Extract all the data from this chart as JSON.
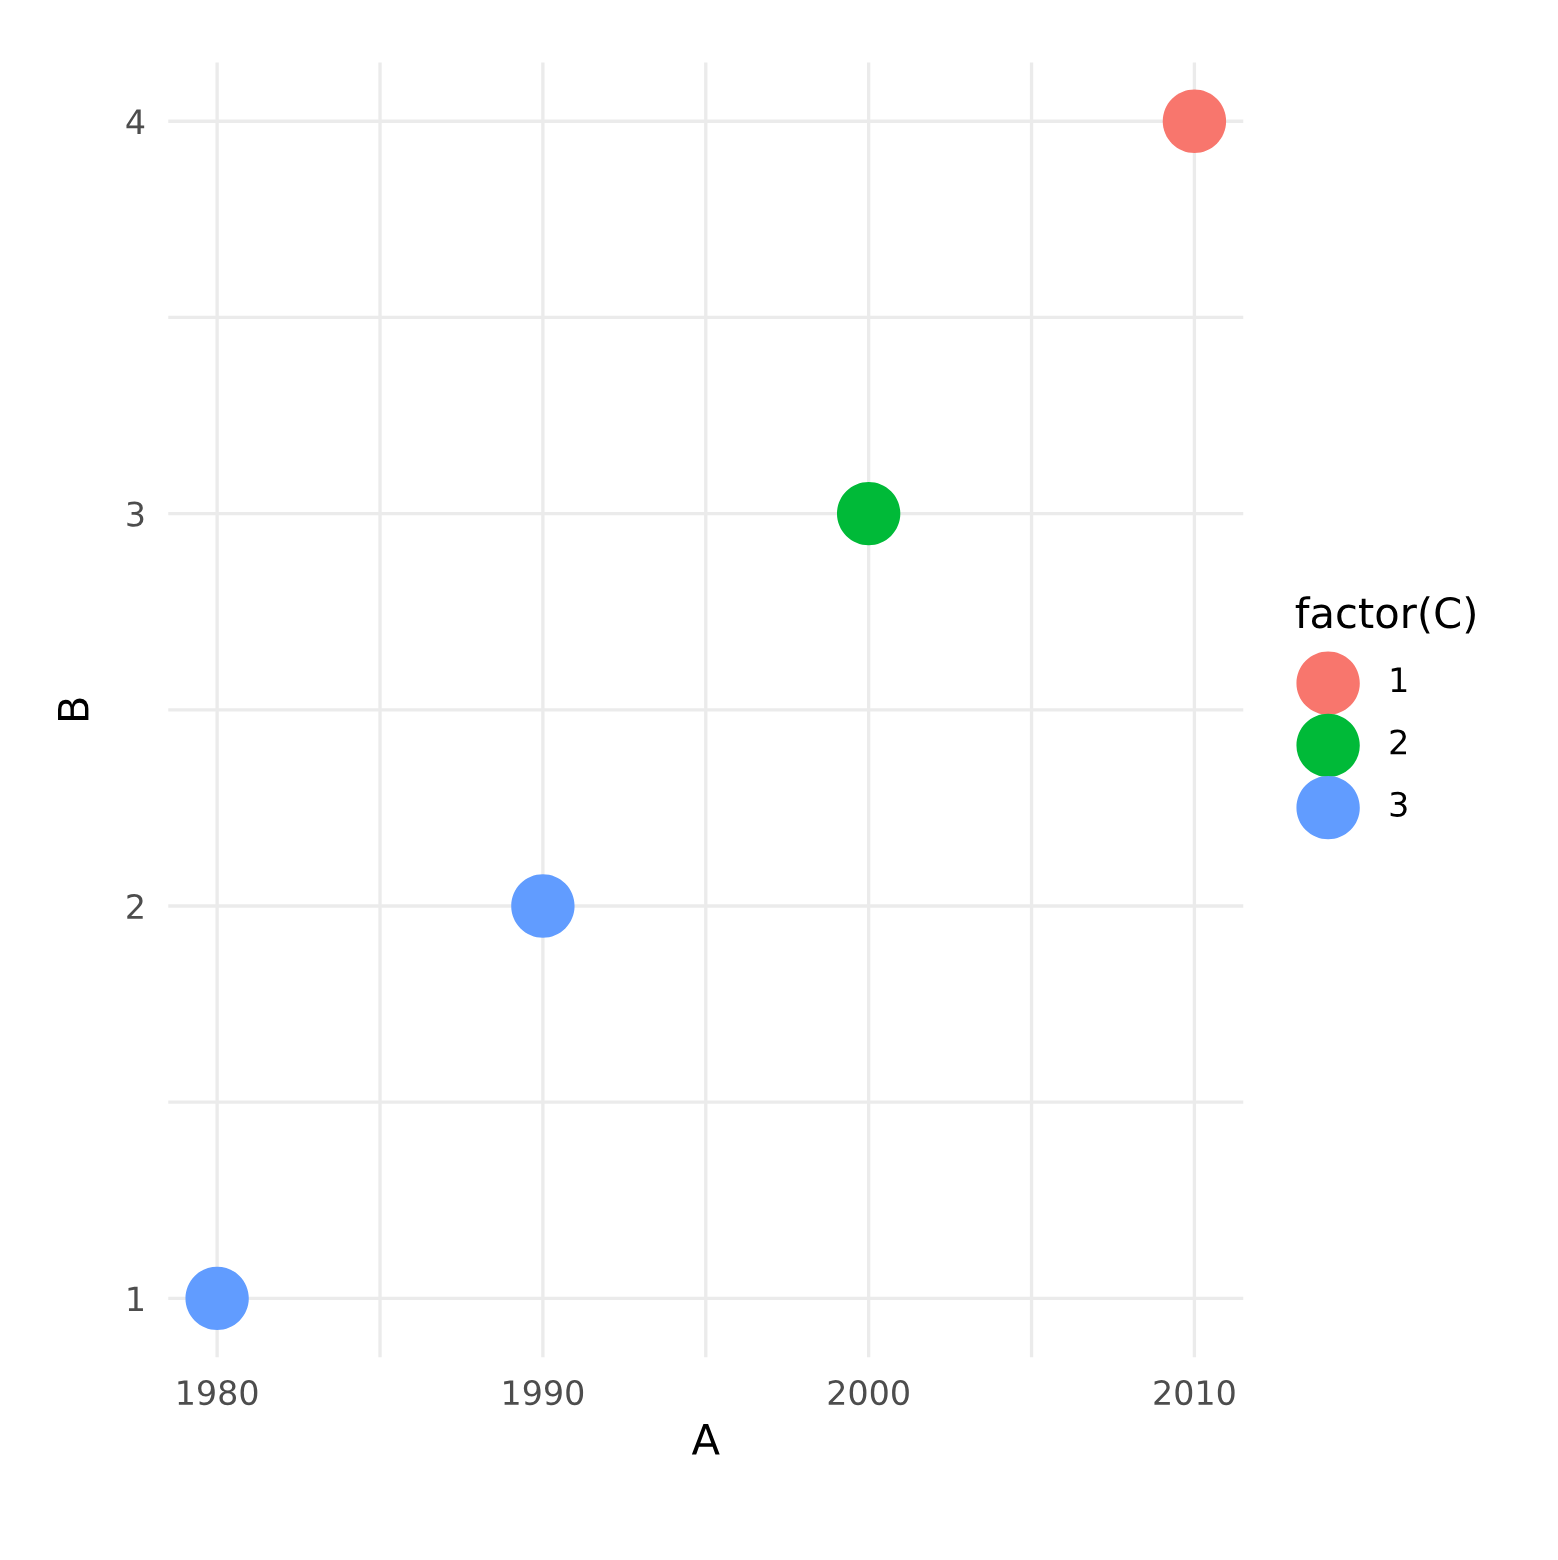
{
  "chart_data": {
    "type": "scatter",
    "xlabel": "A",
    "ylabel": "B",
    "legend_title": "factor(C)",
    "legend": "right",
    "marker": "circle",
    "grid": true,
    "xlim": [
      1978.5,
      2011.5
    ],
    "ylim": [
      0.85,
      4.15
    ],
    "xticks": [
      1980,
      {
        "value": 1985,
        "label": null
      },
      1990,
      {
        "value": 1995,
        "label": null
      },
      2000,
      {
        "value": 2005,
        "label": null
      },
      2010
    ],
    "yticks": [
      1,
      {
        "value": 1.5,
        "label": null
      },
      2,
      {
        "value": 2.5,
        "label": null
      },
      3,
      {
        "value": 3.5,
        "label": null
      },
      4
    ],
    "series": [
      {
        "name": "1",
        "color": "#f8766d",
        "x": [
          2010
        ],
        "values": [
          4
        ]
      },
      {
        "name": "2",
        "color": "#00ba38",
        "x": [
          2000
        ],
        "values": [
          3
        ]
      },
      {
        "name": "3",
        "color": "#619cff",
        "x": [
          1980,
          1990
        ],
        "values": [
          1,
          2
        ]
      }
    ]
  }
}
